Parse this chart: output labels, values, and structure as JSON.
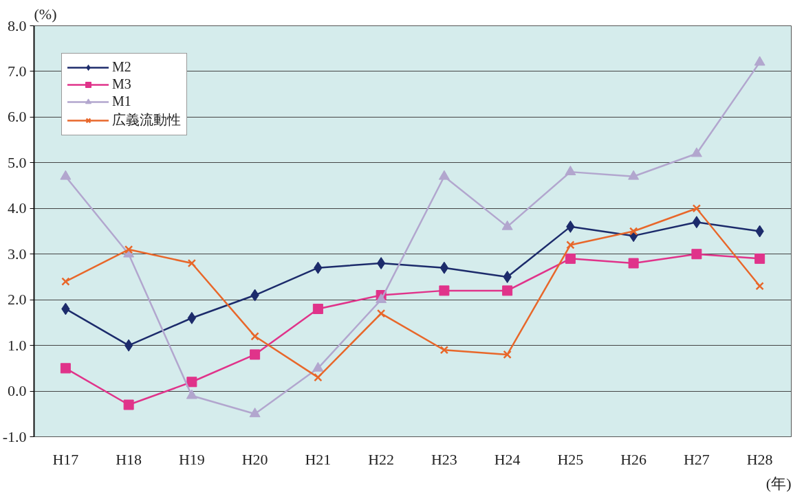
{
  "chart_data": {
    "type": "line",
    "xlabel": "(年)",
    "ylabel": "(%)",
    "categories": [
      "H17",
      "H18",
      "H19",
      "H20",
      "H21",
      "H22",
      "H23",
      "H24",
      "H25",
      "H26",
      "H27",
      "H28"
    ],
    "series": [
      {
        "name": "M2",
        "color": "#1c2b6b",
        "marker": "diamond",
        "values": [
          1.8,
          1.0,
          1.6,
          2.1,
          2.7,
          2.8,
          2.7,
          2.5,
          3.6,
          3.4,
          3.7,
          3.5
        ]
      },
      {
        "name": "M3",
        "color": "#e0338a",
        "marker": "square",
        "values": [
          0.5,
          -0.3,
          0.2,
          0.8,
          1.8,
          2.1,
          2.2,
          2.2,
          2.9,
          2.8,
          3.0,
          2.9
        ]
      },
      {
        "name": "M1",
        "color": "#b2a6ce",
        "marker": "triangle",
        "values": [
          4.7,
          3.0,
          -0.1,
          -0.5,
          0.5,
          2.0,
          4.7,
          3.6,
          4.8,
          4.7,
          5.2,
          7.2
        ]
      },
      {
        "name": "広義流動性",
        "color": "#e8672a",
        "marker": "cross",
        "values": [
          2.4,
          3.1,
          2.8,
          1.2,
          0.3,
          1.7,
          0.9,
          0.8,
          3.2,
          3.5,
          4.0,
          2.3
        ]
      }
    ],
    "ylim": [
      -1,
      8
    ],
    "yticks": [
      {
        "value": -1,
        "label": "-1.0"
      },
      {
        "value": 0,
        "label": "0.0"
      },
      {
        "value": 1,
        "label": "1.0"
      },
      {
        "value": 2,
        "label": "2.0"
      },
      {
        "value": 3,
        "label": "3.0"
      },
      {
        "value": 4,
        "label": "4.0"
      },
      {
        "value": 5,
        "label": "5.0"
      },
      {
        "value": 6,
        "label": "6.0"
      },
      {
        "value": 7,
        "label": "7.0"
      },
      {
        "value": 8,
        "label": "8.0"
      }
    ],
    "grid": "y",
    "legend": "top left"
  }
}
